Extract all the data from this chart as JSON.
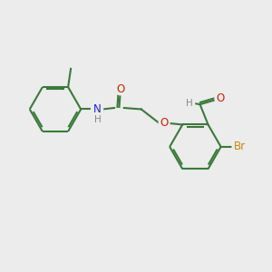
{
  "bg_color": "#ececec",
  "bond_color": "#3a7a3a",
  "bond_width": 1.5,
  "atom_colors": {
    "O": "#cc2200",
    "N": "#2222dd",
    "Br": "#cc8800",
    "H": "#888888"
  },
  "font_size": 8.5,
  "font_size_h": 7.5,
  "dbo": 0.07
}
